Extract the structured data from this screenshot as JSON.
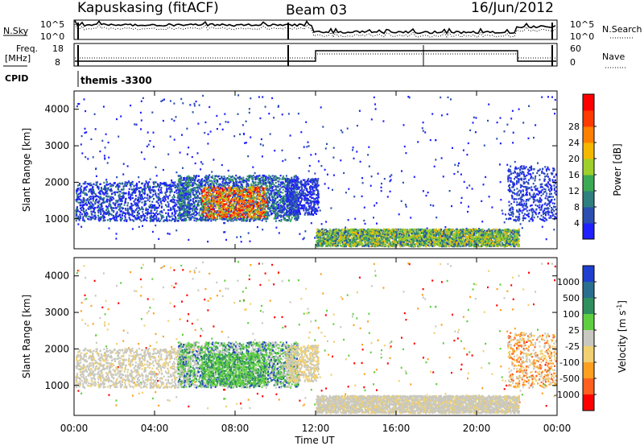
{
  "header": {
    "title": "Kapuskasing (fitACF)",
    "beam": "Beam 03",
    "date": "16/Jun/2012"
  },
  "summary": {
    "nsky_label": "N.Sky",
    "freq_label_1": "Freq.",
    "freq_label_2": "[MHz]",
    "cpid_label": "CPID",
    "nsearch_label": "N.Search",
    "nave_label": "Nave",
    "noise_ticks": [
      "10^5",
      "10^0"
    ],
    "freq_ticks": [
      "18",
      "8"
    ],
    "nave_ticks": [
      "60",
      "0"
    ],
    "cpid_text": "themis -3300"
  },
  "chart_data": [
    {
      "type": "heatmap",
      "name": "power",
      "ylabel": "Slant Range [km]",
      "xlabel": "",
      "yticks": [
        "1000",
        "2000",
        "3000",
        "4000"
      ],
      "ylim": [
        180,
        4500
      ],
      "colorbar_label": "Power [dB]",
      "colorbar_ticks": [
        "4",
        "8",
        "12",
        "16",
        "20",
        "24",
        "28"
      ],
      "colorbar_colors": [
        "#1f1fff",
        "#2a4fb0",
        "#2f7f7f",
        "#3aaa55",
        "#9ecf2a",
        "#f5b800",
        "#ff7f00",
        "#ff3a00",
        "#ff0000"
      ]
    },
    {
      "type": "heatmap",
      "name": "velocity",
      "ylabel": "Slant Range [km]",
      "xlabel": "Time UT",
      "yticks": [
        "1000",
        "2000",
        "3000",
        "4000"
      ],
      "xticks": [
        "00:00",
        "04:00",
        "08:00",
        "12:00",
        "16:00",
        "20:00",
        "00:00"
      ],
      "ylim": [
        180,
        4500
      ],
      "colorbar_label": "Velocity [m s",
      "colorbar_label_sup": "-1",
      "colorbar_label_end": "]",
      "colorbar_ticks": [
        "1000",
        "500",
        "100",
        "25",
        "-25",
        "-100",
        "-500",
        "-1000"
      ],
      "colorbar_colors": [
        "#1f3fcf",
        "#2a6f8f",
        "#2f8f5f",
        "#5fcf3f",
        "#c8c8c0",
        "#f0d070",
        "#ff9f1f",
        "#ff5f1f",
        "#ff0000"
      ]
    }
  ]
}
